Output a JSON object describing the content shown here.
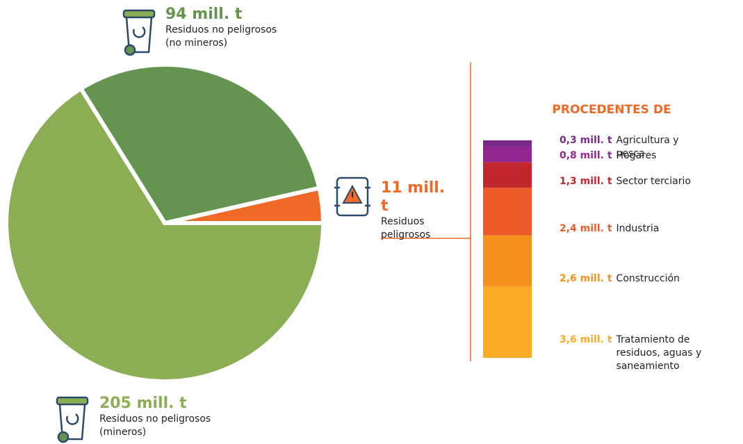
{
  "chart_data": [
    {
      "type": "pie",
      "categories": [
        "Residuos peligrosos",
        "Residuos no peligrosos (no mineros)",
        "Residuos no peligrosos (mineros)"
      ],
      "values": [
        11,
        94,
        205
      ],
      "value_labels": [
        "11 mill. t",
        "94 mill. t",
        "205 mill. t"
      ],
      "colors": [
        "#ef6a26",
        "#659350",
        "#8bae55"
      ]
    },
    {
      "type": "bar",
      "stacked": true,
      "title": "PROCEDENTES DE",
      "categories": [
        "Tratamiento de residuos, aguas y saneamiento",
        "Construcción",
        "Industria",
        "Sector terciario",
        "Hogares",
        "Agricultura y pesca"
      ],
      "values": [
        3.6,
        2.6,
        2.4,
        1.3,
        0.8,
        0.3
      ],
      "value_labels": [
        "3,6 mill. t",
        "2,6 mill. t",
        "2,4 mill. t",
        "1,3 mill. t",
        "0,8 mill. t",
        "0,3 mill. t"
      ],
      "colors": [
        "#f9ab27",
        "#f5921e",
        "#ef5a2a",
        "#c1272d",
        "#92278f",
        "#7a2a8c"
      ]
    }
  ]
}
